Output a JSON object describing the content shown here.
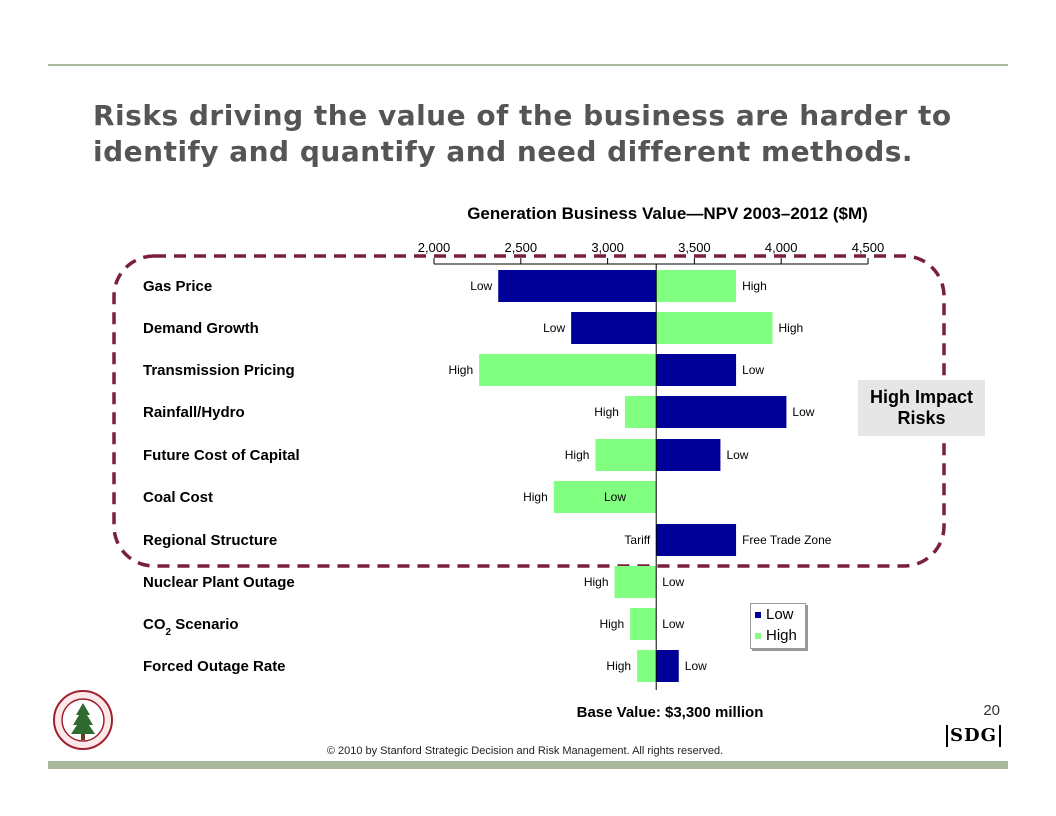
{
  "slide": {
    "title_line1": "Risks driving the value of the business are harder to",
    "title_line2": "identify and quantify and need different methods.",
    "page_number": "20",
    "copyright": "© 2010 by Stanford Strategic Decision and Risk Management. All rights reserved.",
    "logo_text": "SDG",
    "impact_box_line1": "High Impact",
    "impact_box_line2": "Risks"
  },
  "chart_data": {
    "type": "tornado",
    "title": "Generation Business Value—NPV 2003–2012 ($M)",
    "axis": {
      "ticks": [
        "2,000",
        "2,500",
        "3,000",
        "3,500",
        "4,000",
        "4,500"
      ],
      "tick_values": [
        2000,
        2500,
        3000,
        3500,
        4000,
        4500
      ],
      "range": [
        2000,
        4500
      ],
      "position": "top"
    },
    "base_value": 3280,
    "base_value_label": "Base Value: $3,300 million",
    "colors": {
      "Low": "#000099",
      "High": "#80ff80"
    },
    "legend": {
      "entries": [
        "Low",
        "High"
      ],
      "placement": "lower-right"
    },
    "rows": [
      {
        "name": "Gas Price",
        "left": 2370,
        "right": 3740,
        "left_label": "Low",
        "right_label": "High",
        "left_series": "Low",
        "right_series": "High"
      },
      {
        "name": "Demand Growth",
        "left": 2790,
        "right": 3950,
        "left_label": "Low",
        "right_label": "High",
        "left_series": "Low",
        "right_series": "High"
      },
      {
        "name": "Transmission Pricing",
        "left": 2260,
        "right": 3740,
        "left_label": "High",
        "right_label": "Low",
        "left_series": "High",
        "right_series": "Low"
      },
      {
        "name": "Rainfall/Hydro",
        "left": 3100,
        "right": 4030,
        "left_label": "High",
        "right_label": "Low",
        "left_series": "High",
        "right_series": "Low"
      },
      {
        "name": "Future Cost of Capital",
        "left": 2930,
        "right": 3650,
        "left_label": "High",
        "right_label": "Low",
        "left_series": "High",
        "right_series": "Low"
      },
      {
        "name": "Coal Cost",
        "left": 2690,
        "right": 3280,
        "left_label": "High",
        "right_label": "Low",
        "left_series": "High",
        "right_series": null,
        "right_label_inside": true
      },
      {
        "name": "Regional Structure",
        "left": 3280,
        "right": 3740,
        "left_label": "Tariff",
        "right_label": "Free Trade Zone",
        "left_series": null,
        "right_series": "Low"
      },
      {
        "name": "Nuclear Plant Outage",
        "left": 3040,
        "right": 3280,
        "left_label": "High",
        "right_label": "Low",
        "left_series": "High",
        "right_series": null
      },
      {
        "name": "CO2 Scenario",
        "name_main": "CO",
        "name_sub": "2",
        "name_rest": " Scenario",
        "left": 3130,
        "right": 3280,
        "left_label": "High",
        "right_label": "Low",
        "left_series": "High",
        "right_series": null
      },
      {
        "name": "Forced Outage Rate",
        "left": 3170,
        "right": 3410,
        "left_label": "High",
        "right_label": "Low",
        "left_series": "High",
        "right_series": "Low"
      }
    ],
    "highlighted_group": {
      "label": "High Impact Risks",
      "rows": [
        "Gas Price",
        "Demand Growth",
        "Transmission Pricing",
        "Rainfall/Hydro",
        "Future Cost of Capital",
        "Coal Cost",
        "Regional Structure"
      ]
    }
  }
}
